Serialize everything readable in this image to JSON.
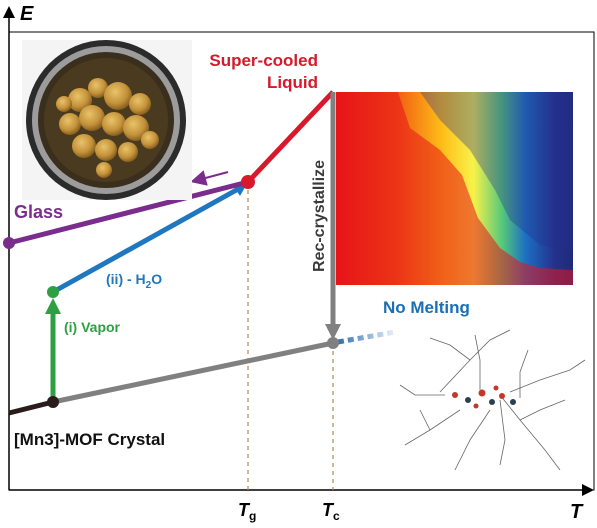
{
  "axes": {
    "y_label": "E",
    "x_label": "T"
  },
  "ticks": {
    "tg": {
      "main": "T",
      "sub": "g"
    },
    "tc": {
      "main": "T",
      "sub": "c"
    }
  },
  "labels": {
    "supercooled_line1": "Super-cooled",
    "supercooled_line2": "Liquid",
    "glass": "Glass",
    "recrystallize": "Rec-crystallize",
    "step_vapor": "(i) Vapor",
    "step_water_prefix": "(ii) - H",
    "step_water_sub": "2",
    "step_water_suffix": "O",
    "no_melting": "No Melting",
    "crystal": "[Mn3]-MOF Crystal"
  },
  "colors": {
    "supercooled": "#d7192b",
    "glass": "#7b2d8e",
    "dehydration": "#1f77c0",
    "vapor": "#2ea043",
    "crystal": "#808080",
    "baseline": "#2a1c1c",
    "recrystallize_label": "#3a3a3a",
    "no_melting": "#1a6fb5",
    "tick_guides": "#b08a4a"
  },
  "icons": {
    "photo": "glass-photo-icon",
    "heatmap": "heatmap-inset-icon",
    "structure": "mof-structure-icon"
  }
}
